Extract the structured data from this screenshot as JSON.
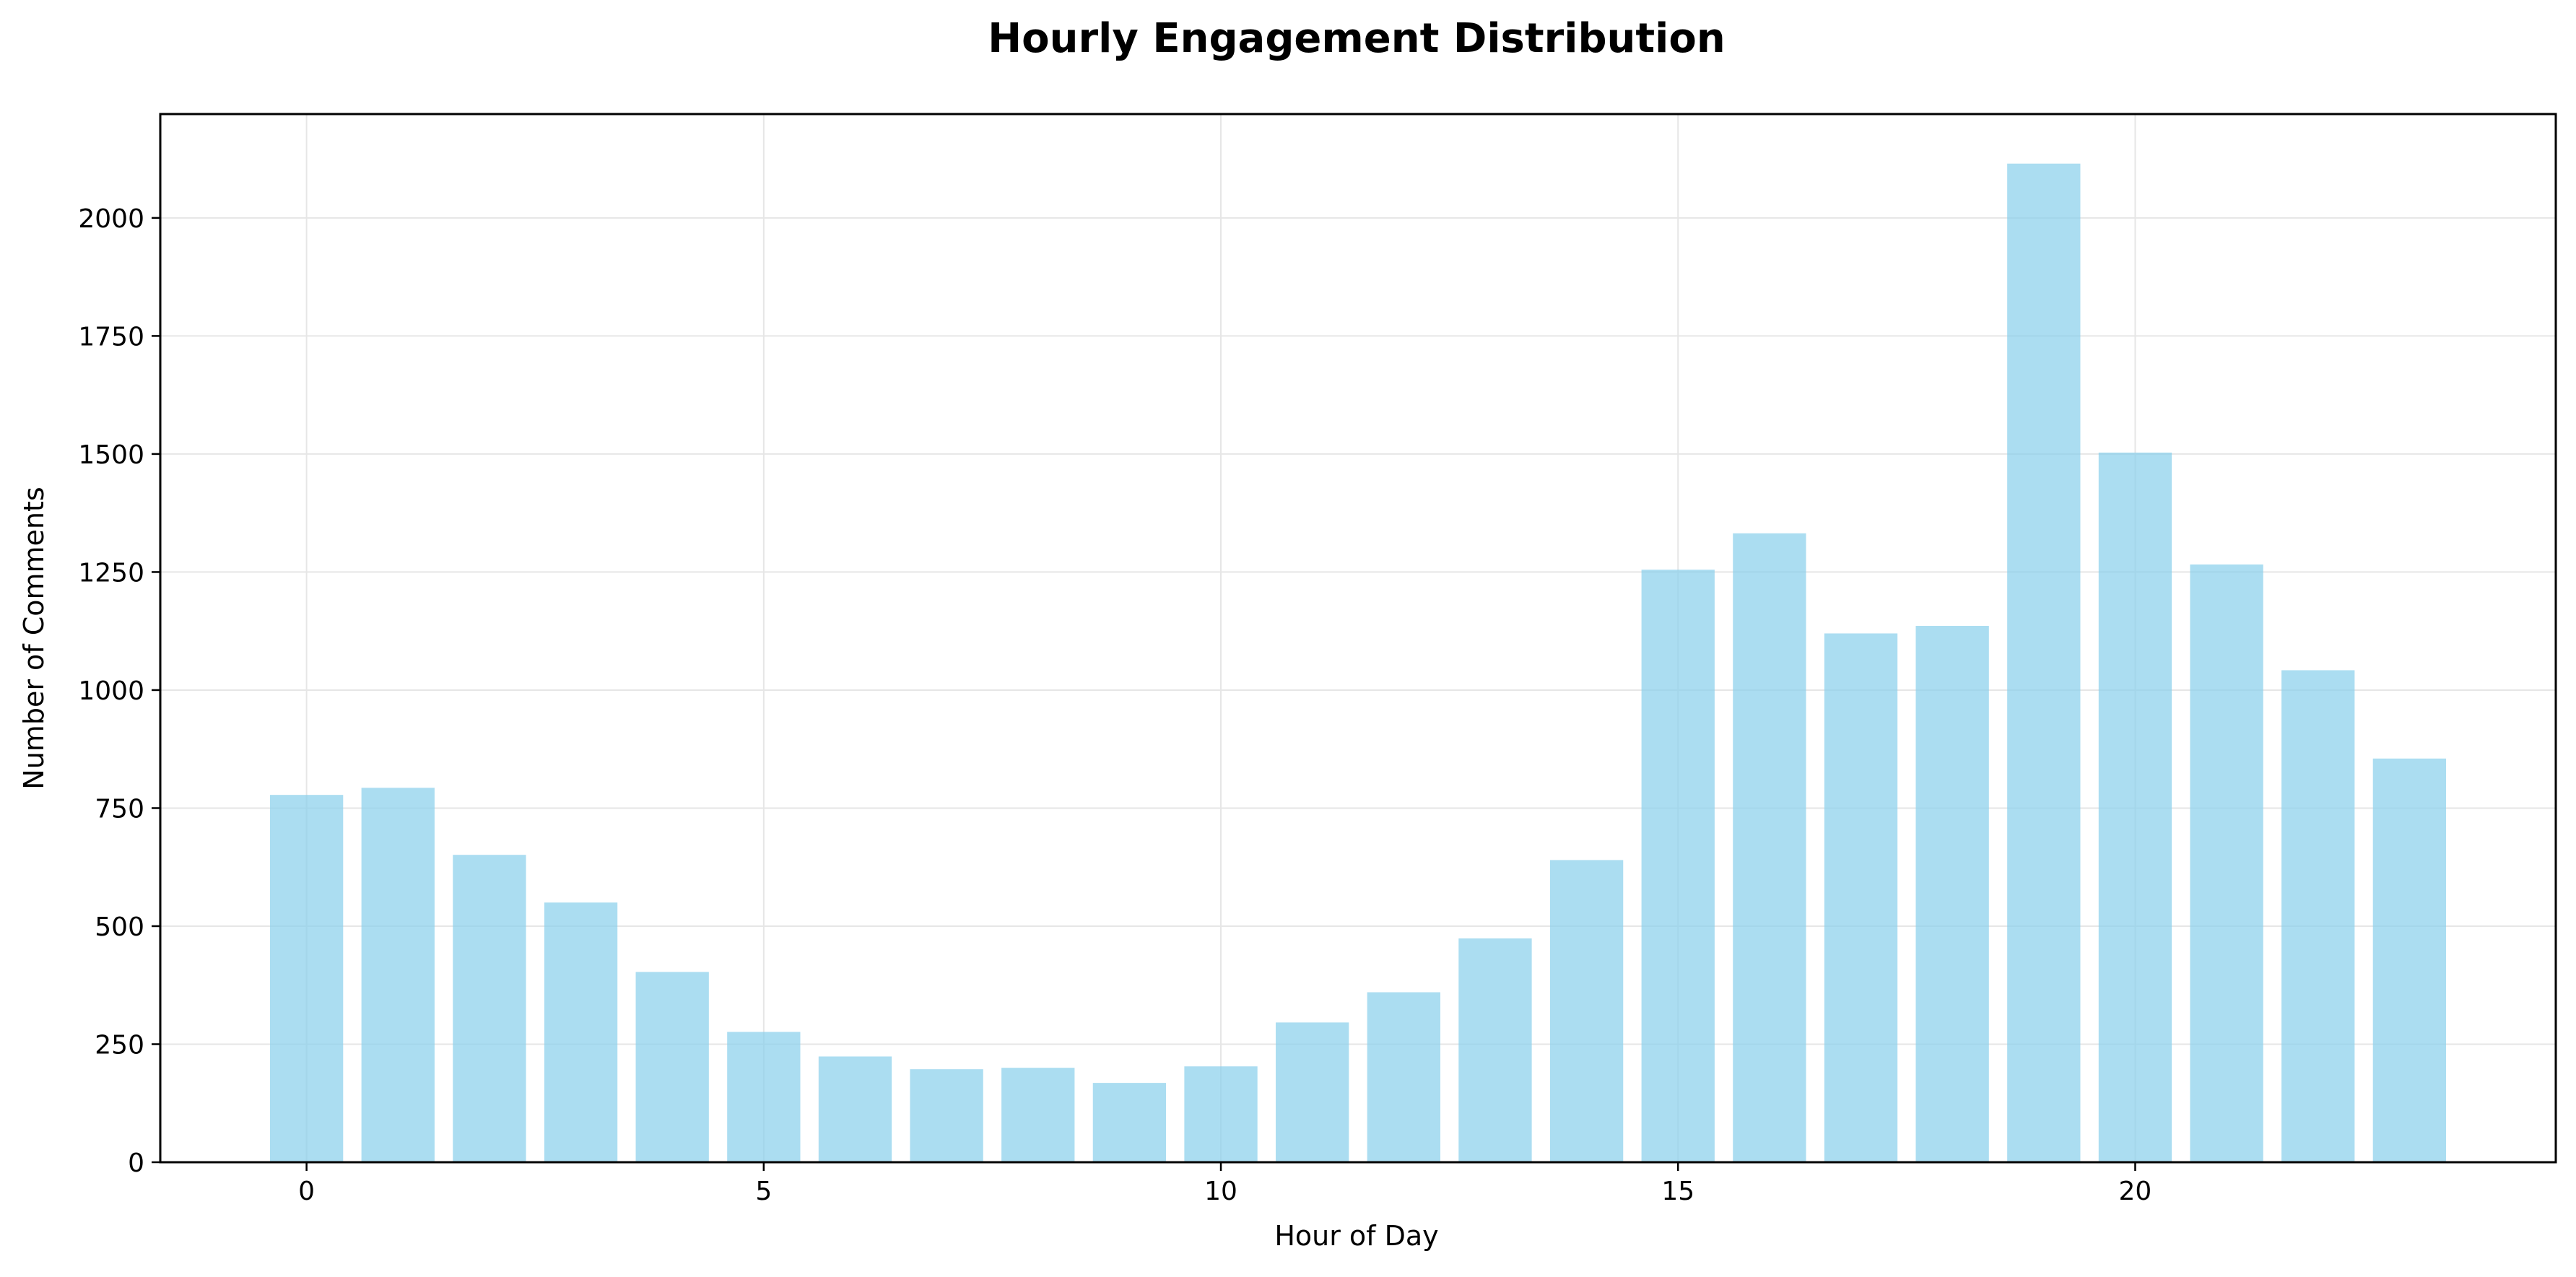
{
  "chart_data": {
    "type": "bar",
    "title": "Hourly Engagement Distribution",
    "xlabel": "Hour of Day",
    "ylabel": "Number of Comments",
    "categories": [
      0,
      1,
      2,
      3,
      4,
      5,
      6,
      7,
      8,
      9,
      10,
      11,
      12,
      13,
      14,
      15,
      16,
      17,
      18,
      19,
      20,
      21,
      22,
      23
    ],
    "values": [
      778,
      793,
      651,
      550,
      403,
      276,
      224,
      197,
      200,
      168,
      203,
      296,
      360,
      474,
      640,
      1255,
      1332,
      1120,
      1136,
      2115,
      1503,
      1266,
      1042,
      855
    ],
    "xlim": [
      -1.6,
      24.6
    ],
    "ylim": [
      0,
      2220
    ],
    "xticks": [
      0,
      5,
      10,
      15,
      20
    ],
    "yticks": [
      0,
      250,
      500,
      750,
      1000,
      1250,
      1500,
      1750,
      2000
    ],
    "grid": true,
    "bar_color": "#87ceeb",
    "bar_opacity": 0.7,
    "grid_color": "#e6e6e6"
  }
}
